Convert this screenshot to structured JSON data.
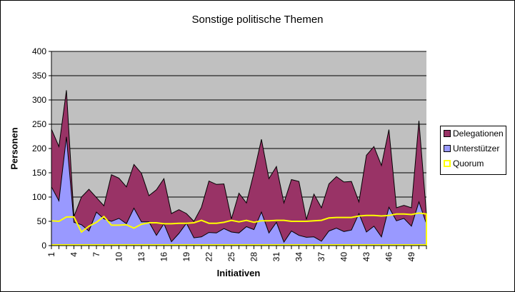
{
  "chart_data": {
    "type": "area",
    "stacked": true,
    "title": "Sonstige politische Themen",
    "xlabel": "Initiativen",
    "ylabel": "Personen",
    "ylim": [
      0,
      400
    ],
    "yticks": [
      0,
      50,
      100,
      150,
      200,
      250,
      300,
      350,
      400
    ],
    "x": [
      1,
      2,
      3,
      4,
      5,
      6,
      7,
      8,
      9,
      10,
      11,
      12,
      13,
      14,
      15,
      16,
      17,
      18,
      19,
      20,
      21,
      22,
      23,
      24,
      25,
      26,
      27,
      28,
      29,
      30,
      31,
      32,
      33,
      34,
      35,
      36,
      37,
      38,
      39,
      40,
      41,
      42,
      43,
      44,
      45,
      46,
      47,
      48,
      49,
      50,
      51
    ],
    "xtick_labels": [
      "1",
      "4",
      "7",
      "10",
      "13",
      "16",
      "19",
      "22",
      "25",
      "28",
      "31",
      "34",
      "37",
      "40",
      "43",
      "46",
      "49"
    ],
    "grid": true,
    "legend_position": "right",
    "series": [
      {
        "name": "Delegationen",
        "kind": "stacked-area",
        "color": "#993366",
        "values": [
          119,
          112,
          96,
          12,
          57,
          86,
          30,
          27,
          96,
          83,
          76,
          90,
          100,
          54,
          94,
          93,
          58,
          49,
          20,
          34,
          61,
          106,
          100,
          92,
          27,
          82,
          49,
          117,
          150,
          112,
          115,
          81,
          106,
          111,
          37,
          88,
          69,
          97,
          106,
          102,
          100,
          24,
          158,
          164,
          147,
          160,
          27,
          27,
          38,
          167,
          20
        ]
      },
      {
        "name": "Unterstützer",
        "kind": "stacked-area",
        "color": "#9999FF",
        "values": [
          121,
          92,
          224,
          48,
          43,
          30,
          69,
          55,
          50,
          56,
          45,
          77,
          49,
          49,
          21,
          45,
          8,
          25,
          46,
          16,
          18,
          27,
          26,
          35,
          28,
          26,
          39,
          33,
          69,
          26,
          48,
          7,
          30,
          21,
          17,
          18,
          9,
          30,
          36,
          29,
          32,
          66,
          28,
          40,
          18,
          79,
          51,
          56,
          40,
          90,
          45
        ]
      },
      {
        "name": "Quorum",
        "kind": "line",
        "color": "#FFFF00",
        "values": [
          51,
          50,
          59,
          59,
          28,
          40,
          48,
          60,
          42,
          42,
          43,
          36,
          44,
          47,
          47,
          45,
          45,
          46,
          46,
          47,
          52,
          46,
          46,
          48,
          52,
          49,
          52,
          48,
          51,
          51,
          52,
          52,
          50,
          50,
          50,
          51,
          52,
          57,
          58,
          58,
          58,
          61,
          62,
          62,
          61,
          62,
          65,
          65,
          64,
          67,
          65
        ]
      }
    ],
    "plot_background": "#C0C0C0"
  },
  "legend": {
    "items": [
      {
        "label": "Delegationen",
        "color": "#993366"
      },
      {
        "label": "Unterstützer",
        "color": "#9999FF"
      },
      {
        "label": "Quorum",
        "color": "#FFFF00"
      }
    ]
  }
}
